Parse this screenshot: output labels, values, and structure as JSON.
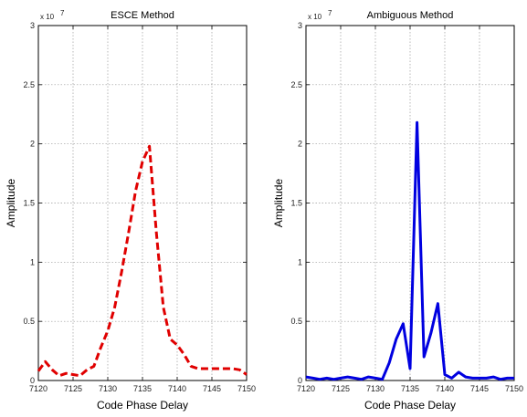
{
  "chart_data": [
    {
      "type": "line",
      "title": "ESCE Method",
      "xlabel": "Code Phase Delay",
      "ylabel": "Amplitude",
      "y_exponent_label": "x 10",
      "y_exponent_power": "7",
      "xlim": [
        7120,
        7150
      ],
      "ylim": [
        0,
        3
      ],
      "xticks": [
        "7120",
        "7125",
        "7130",
        "7135",
        "7140",
        "7145",
        "7150"
      ],
      "yticks": [
        "0",
        "0.5",
        "1",
        "1.5",
        "2",
        "2.5",
        "3"
      ],
      "grid": true,
      "series": [
        {
          "color": "#e00000",
          "style": "dashed",
          "x": [
            7120,
            7121,
            7122,
            7123,
            7124,
            7125,
            7126,
            7127,
            7128,
            7129,
            7130,
            7131,
            7132,
            7133,
            7134,
            7135,
            7136,
            7137,
            7138,
            7139,
            7140,
            7141,
            7142,
            7143,
            7144,
            7145,
            7146,
            7147,
            7148,
            7149,
            7150
          ],
          "y": [
            0.08,
            0.16,
            0.09,
            0.04,
            0.06,
            0.05,
            0.04,
            0.09,
            0.12,
            0.28,
            0.42,
            0.62,
            0.92,
            1.25,
            1.6,
            1.85,
            1.98,
            1.25,
            0.62,
            0.35,
            0.3,
            0.22,
            0.12,
            0.1,
            0.1,
            0.1,
            0.1,
            0.1,
            0.1,
            0.09,
            0.05
          ]
        }
      ]
    },
    {
      "type": "line",
      "title": "Ambiguous Method",
      "xlabel": "Code Phase Delay",
      "ylabel": "Amplitude",
      "y_exponent_label": "x 10",
      "y_exponent_power": "7",
      "xlim": [
        7120,
        7150
      ],
      "ylim": [
        0,
        3
      ],
      "xticks": [
        "7120",
        "7125",
        "7130",
        "7135",
        "7140",
        "7145",
        "7150"
      ],
      "yticks": [
        "0",
        "0.5",
        "1",
        "1.5",
        "2",
        "2.5",
        "3"
      ],
      "grid": true,
      "series": [
        {
          "color": "#0000e0",
          "style": "solid",
          "x": [
            7120,
            7121,
            7122,
            7123,
            7124,
            7125,
            7126,
            7127,
            7128,
            7129,
            7130,
            7131,
            7132,
            7133,
            7134,
            7135,
            7136,
            7137,
            7138,
            7139,
            7140,
            7141,
            7142,
            7143,
            7144,
            7145,
            7146,
            7147,
            7148,
            7149,
            7150
          ],
          "y": [
            0.03,
            0.02,
            0.01,
            0.02,
            0.01,
            0.02,
            0.03,
            0.02,
            0.01,
            0.03,
            0.02,
            0.01,
            0.15,
            0.35,
            0.48,
            0.1,
            2.18,
            0.2,
            0.4,
            0.65,
            0.05,
            0.02,
            0.07,
            0.03,
            0.02,
            0.02,
            0.02,
            0.03,
            0.01,
            0.02,
            0.02
          ]
        }
      ]
    }
  ]
}
